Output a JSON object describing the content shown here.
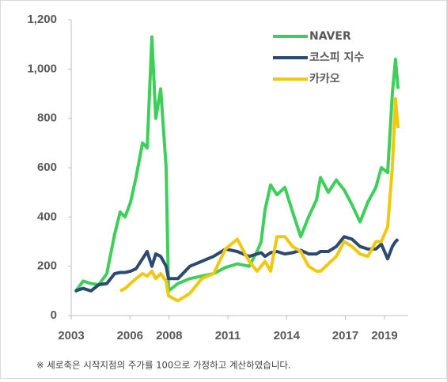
{
  "chart_data": {
    "type": "line",
    "note": "※ 세로축은 시작지점의 주가를 100으로 가정하고 계산하였습니다.",
    "x": [
      2003.2,
      2003.61,
      2004.01,
      2004.41,
      2004.82,
      2005.22,
      2005.5,
      2005.75,
      2006.03,
      2006.31,
      2006.64,
      2006.88,
      2007.12,
      2007.32,
      2007.57,
      2007.85,
      2007.97,
      2008.45,
      2009.06,
      2009.67,
      2010.27,
      2010.88,
      2011.48,
      2012.09,
      2012.49,
      2012.7,
      2012.9,
      2013.18,
      2013.51,
      2013.91,
      2014.31,
      2014.72,
      2015.12,
      2015.53,
      2015.73,
      2016.13,
      2016.54,
      2016.94,
      2017.34,
      2017.75,
      2018.15,
      2018.56,
      2018.84,
      2019.16,
      2019.4,
      2019.56,
      2019.69
    ],
    "series": [
      {
        "name": "NAVER",
        "color": "#3ecf5a",
        "values": [
          95,
          140,
          130,
          125,
          170,
          330,
          420,
          400,
          460,
          560,
          700,
          680,
          1130,
          800,
          920,
          600,
          100,
          130,
          150,
          160,
          170,
          195,
          210,
          200,
          260,
          300,
          430,
          530,
          490,
          520,
          420,
          320,
          400,
          470,
          560,
          500,
          550,
          510,
          450,
          380,
          460,
          520,
          600,
          580,
          900,
          1040,
          920
        ]
      },
      {
        "name": "코스피 지수",
        "color": "#2b4a6f",
        "values": [
          100,
          110,
          100,
          125,
          130,
          170,
          175,
          175,
          180,
          190,
          230,
          260,
          200,
          250,
          240,
          200,
          150,
          150,
          200,
          220,
          240,
          270,
          260,
          240,
          250,
          255,
          240,
          255,
          260,
          250,
          255,
          265,
          250,
          250,
          260,
          260,
          280,
          320,
          310,
          280,
          270,
          270,
          290,
          230,
          280,
          300,
          310
        ]
      },
      {
        "name": "카카오",
        "color": "#f2c80f",
        "values": [
          null,
          null,
          null,
          null,
          null,
          null,
          100,
          110,
          130,
          150,
          170,
          160,
          180,
          150,
          170,
          140,
          80,
          60,
          90,
          150,
          170,
          270,
          310,
          220,
          180,
          200,
          220,
          180,
          320,
          320,
          280,
          260,
          200,
          180,
          180,
          210,
          240,
          300,
          280,
          250,
          240,
          300,
          300,
          360,
          600,
          880,
          760
        ]
      }
    ],
    "xlim": [
      2003,
      2020.2
    ],
    "xticks": [
      2003,
      2006,
      2008,
      2011,
      2014,
      2017,
      2019
    ],
    "ylim": [
      0,
      1200
    ],
    "yticks": [
      0,
      200,
      400,
      600,
      800,
      {
        "value": 1000,
        "label": "1,000"
      },
      {
        "value": 1200,
        "label": "1,200"
      }
    ],
    "legend": "top-right"
  }
}
